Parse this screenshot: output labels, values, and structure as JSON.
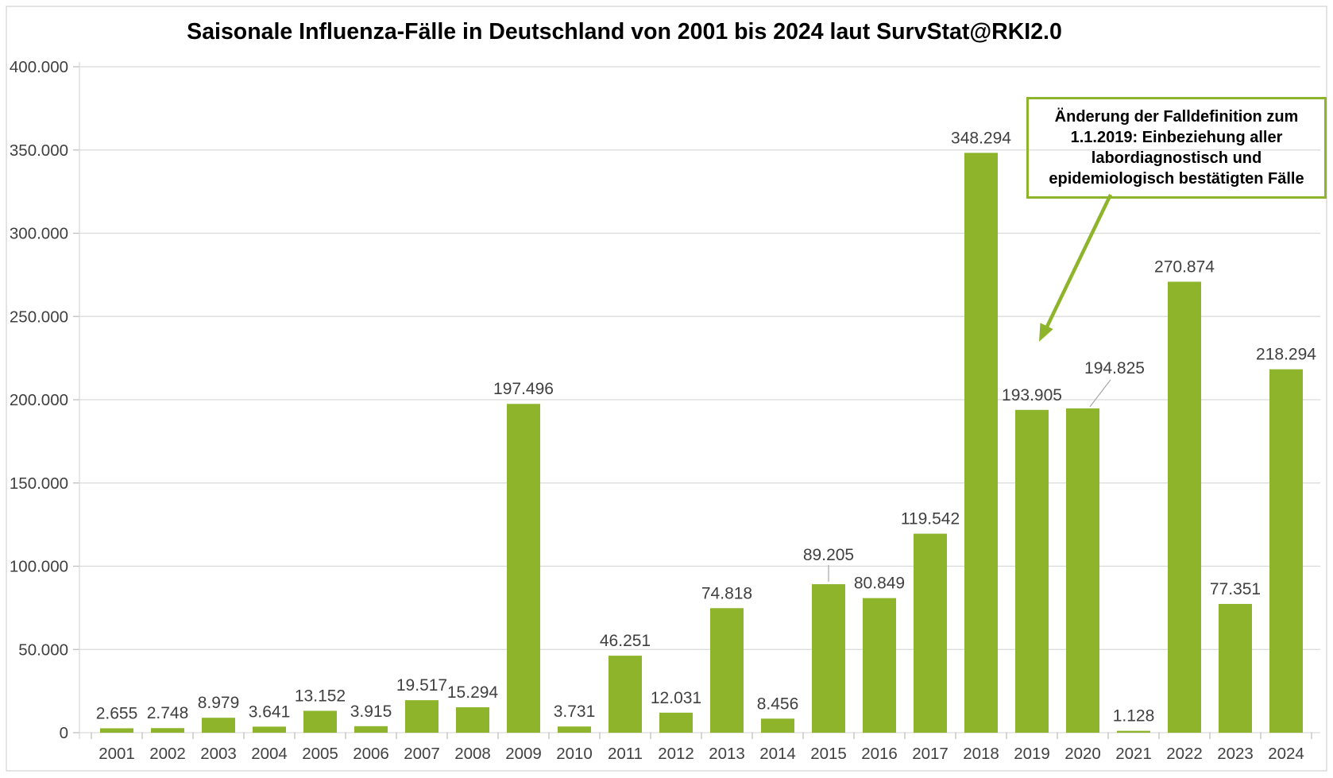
{
  "chart_data": {
    "type": "bar",
    "title": "Saisonale Influenza-Fälle in Deutschland von 2001 bis 2024 laut SurvStat@RKI2.0",
    "categories": [
      "2001",
      "2002",
      "2003",
      "2004",
      "2005",
      "2006",
      "2007",
      "2008",
      "2009",
      "2010",
      "2011",
      "2012",
      "2013",
      "2014",
      "2015",
      "2016",
      "2017",
      "2018",
      "2019",
      "2020",
      "2021",
      "2022",
      "2023",
      "2024"
    ],
    "values": [
      2655,
      2748,
      8979,
      3641,
      13152,
      3915,
      19517,
      15294,
      197496,
      3731,
      46251,
      12031,
      74818,
      8456,
      89205,
      80849,
      119542,
      348294,
      193905,
      194825,
      1128,
      270874,
      77351,
      218294
    ],
    "value_labels": [
      "2.655",
      "2.748",
      "8.979",
      "3.641",
      "13.152",
      "3.915",
      "19.517",
      "15.294",
      "197.496",
      "3.731",
      "46.251",
      "12.031",
      "74.818",
      "8.456",
      "89.205",
      "80.849",
      "119.542",
      "348.294",
      "193.905",
      "194.825",
      "1.128",
      "270.874",
      "77.351",
      "218.294"
    ],
    "xlabel": "",
    "ylabel": "",
    "ylim": [
      0,
      400000
    ],
    "y_tick_step": 50000,
    "y_tick_labels_top_to_bottom": [
      "400.000",
      "350.000",
      "300.000",
      "250.000",
      "200.000",
      "150.000",
      "100.000",
      "50.000",
      "0"
    ],
    "grid": true,
    "legend": false,
    "number_format": "german-thousands-dot",
    "annotation": {
      "lines": [
        "Änderung der Falldefinition zum",
        "1.1.2019: Einbeziehung aller",
        "labordiagnostisch und",
        "epidemiologisch bestätigten Fälle"
      ],
      "text": "Änderung der Falldefinition zum 1.1.2019: Einbeziehung aller labordiagnostisch und epidemiologisch bestätigten Fälle",
      "arrow_points_to_category": "2019"
    },
    "colors": {
      "bar": "#8EB42C",
      "annotation_border": "#8EB42C",
      "arrow": "#8EB42C",
      "gridline": "#D9D9D9",
      "tick": "#BFBFBF",
      "axis_text": "#404040",
      "value_label_text": "#404040",
      "title_text": "#000000",
      "leader_line": "#A6A6A6",
      "frame_border": "#C9C9C9"
    }
  }
}
